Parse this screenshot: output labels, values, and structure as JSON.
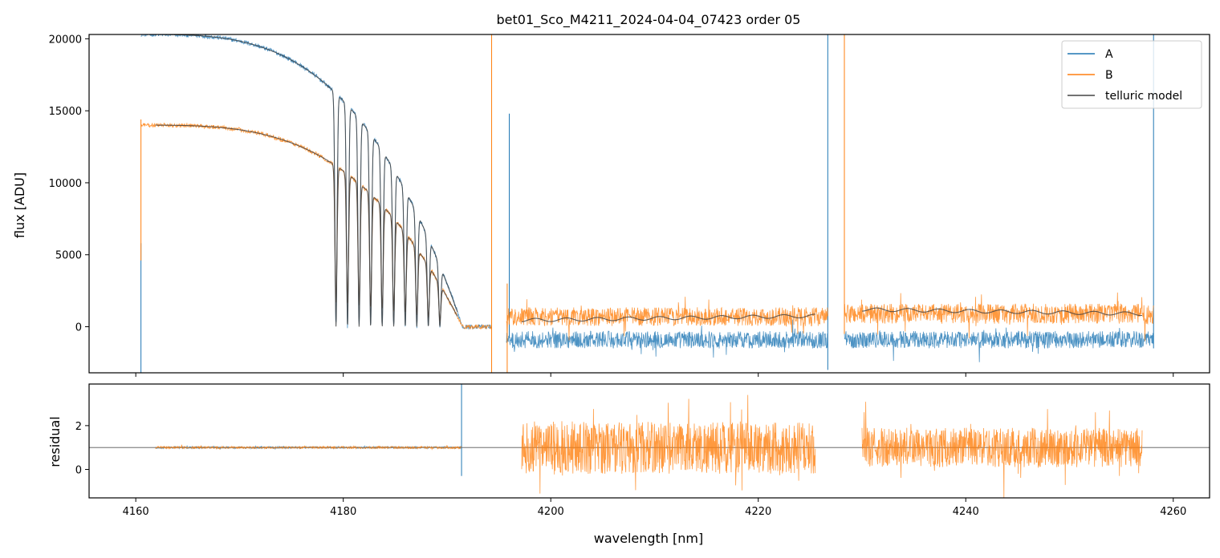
{
  "chart_data": {
    "type": "line",
    "title": "bet01_Sco_M4211_2024-04-04_07423  order 05",
    "xlabel": "wavelength [nm]",
    "xlim": [
      4155.5,
      4263.5
    ],
    "xticks": [
      4160,
      4180,
      4200,
      4220,
      4240,
      4260
    ],
    "xtick_labels": [
      "4160",
      "4180",
      "4200",
      "4220",
      "4240",
      "4260"
    ],
    "panels": [
      {
        "id": "flux",
        "ylabel": "flux [ADU]",
        "ylim": [
          -3200,
          20300
        ],
        "yticks": [
          0,
          5000,
          10000,
          15000,
          20000
        ],
        "ytick_labels": [
          "0",
          "5000",
          "10000",
          "15000",
          "20000"
        ],
        "legend_position": "upper right",
        "series": [
          {
            "name": "A",
            "color": "#1f77b4",
            "segments": [
              {
                "start": 4160.5,
                "end": 4194.3,
                "continuum_start": 20300,
                "continuum_end": 0,
                "noise": 150,
                "comb": [
                  4179.3,
                  4188.2,
                  1
                ]
              },
              {
                "start": 4195.7,
                "end": 4226.7,
                "level": -900,
                "noise": 600
              },
              {
                "start": 4228.3,
                "end": 4258.1,
                "level": -900,
                "noise": 600
              }
            ],
            "spikes": [
              [
                4160.5,
                -3200,
                5800
              ],
              [
                4196.0,
                -800,
                14800
              ],
              [
                4226.7,
                -3000,
                20300
              ],
              [
                4258.1,
                -1500,
                20300
              ]
            ]
          },
          {
            "name": "B",
            "color": "#ff7f0e",
            "segments": [
              {
                "start": 4160.5,
                "end": 4194.3,
                "continuum_start": 14000,
                "continuum_end": 0,
                "noise": 150,
                "comb": [
                  4179.3,
                  4188.2,
                  0.85
                ]
              },
              {
                "start": 4195.7,
                "end": 4226.7,
                "level": 700,
                "noise": 650
              },
              {
                "start": 4228.3,
                "end": 4258.1,
                "level": 900,
                "noise": 700
              }
            ],
            "spikes": [
              [
                4160.5,
                4600,
                14400
              ],
              [
                4194.3,
                -3200,
                20300
              ],
              [
                4195.8,
                -3200,
                3000
              ],
              [
                4228.3,
                -500,
                20300
              ]
            ]
          },
          {
            "name": "telluric model",
            "color": "#444444",
            "segments": [
              {
                "start": 4161.9,
                "end": 4191.0,
                "model": "A"
              },
              {
                "start": 4161.9,
                "end": 4191.0,
                "model": "B"
              },
              {
                "start": 4197.2,
                "end": 4225.5,
                "level_start": 450,
                "level_end": 750
              },
              {
                "start": 4230.0,
                "end": 4257.0,
                "level_start": 1200,
                "level_end": 900
              }
            ]
          }
        ]
      },
      {
        "id": "residual",
        "ylabel": "residual",
        "ylim": [
          -1.3,
          3.9
        ],
        "yticks": [
          0,
          2
        ],
        "ytick_labels": [
          "0",
          "2"
        ],
        "reference_line": 1,
        "series": [
          {
            "name": "A",
            "color": "#1f77b4",
            "segments": [
              {
                "start": 4161.9,
                "end": 4191.4,
                "level": 1,
                "noise": 0.04
              }
            ],
            "spikes": [
              [
                4191.4,
                -0.3,
                3.9
              ]
            ]
          },
          {
            "name": "B",
            "color": "#ff7f0e",
            "segments": [
              {
                "start": 4161.9,
                "end": 4191.4,
                "level": 1,
                "noise": 0.05
              },
              {
                "start": 4197.2,
                "end": 4225.5,
                "level": 1,
                "noise": 1.2
              },
              {
                "start": 4230.0,
                "end": 4257.0,
                "level": 1,
                "noise": 0.9
              }
            ]
          }
        ]
      }
    ],
    "legend": [
      {
        "label": "A",
        "color": "#1f77b4"
      },
      {
        "label": "B",
        "color": "#ff7f0e"
      },
      {
        "label": "telluric model",
        "color": "#444444"
      }
    ]
  }
}
